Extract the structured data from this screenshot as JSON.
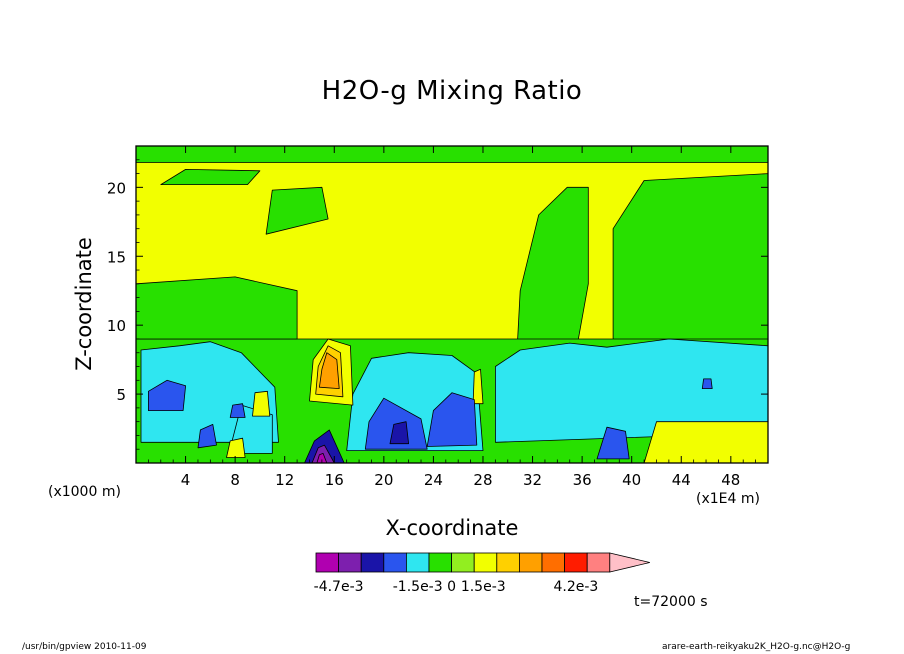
{
  "chart_data": {
    "type": "contour",
    "title": "H2O-g Mixing Ratio",
    "xlabel": "X-coordinate",
    "ylabel": "Z-coordinate",
    "x_unit": "(x1000 m)",
    "x_scale_note": "(x1E4 m)",
    "xlim": [
      0,
      51
    ],
    "ylim": [
      0,
      23
    ],
    "xticks": [
      4,
      8,
      12,
      16,
      20,
      24,
      28,
      32,
      36,
      40,
      44,
      48
    ],
    "yticks": [
      5,
      10,
      15,
      20
    ],
    "time_label": "t=72000 s",
    "colorbar": {
      "colors": [
        "#b000b0",
        "#7d1fae",
        "#1a14a8",
        "#2a55ee",
        "#2fe6f0",
        "#28e000",
        "#92ee20",
        "#f2ff00",
        "#ffd000",
        "#ffa000",
        "#ff6e00",
        "#ff1c00",
        "#ff8080",
        "#ffc0c8"
      ],
      "labels": [
        "-4.7e-3",
        "-1.5e-3",
        "0",
        "1.5e-3",
        "4.2e-3"
      ]
    },
    "regions": [
      {
        "level": "cyan",
        "x": [
          0.4,
          11.5,
          11.2,
          8.5,
          6,
          3.5,
          0.4
        ],
        "z": [
          1.5,
          1.5,
          5.5,
          8,
          8.8,
          8.5,
          8.2
        ]
      },
      {
        "level": "cyan",
        "x": [
          17,
          28,
          27.5,
          25.5,
          22,
          19,
          17.5
        ],
        "z": [
          0.9,
          0.9,
          6.5,
          7.8,
          8,
          7.6,
          5
        ]
      },
      {
        "level": "cyan",
        "x": [
          29,
          51,
          51,
          43,
          38,
          35,
          31,
          29
        ],
        "z": [
          1.5,
          2.2,
          8.5,
          9,
          8.4,
          8.7,
          8.2,
          7
        ]
      },
      {
        "level": "cyan",
        "x": [
          7.5,
          11,
          11,
          8.5
        ],
        "z": [
          0.7,
          0.7,
          3.5,
          4.2
        ]
      },
      {
        "level": "blue",
        "x": [
          1,
          3.8,
          4,
          2.5,
          1
        ],
        "z": [
          3.8,
          3.8,
          5.6,
          6,
          5.2
        ]
      },
      {
        "level": "blue",
        "x": [
          5,
          6.5,
          6.2,
          5.2
        ],
        "z": [
          1.1,
          1.3,
          2.8,
          2.4
        ]
      },
      {
        "level": "blue",
        "x": [
          7.6,
          8.8,
          8.6,
          7.8
        ],
        "z": [
          3.3,
          3.3,
          4.3,
          4.2
        ]
      },
      {
        "level": "blue",
        "x": [
          18.5,
          23.5,
          23,
          20,
          18.8
        ],
        "z": [
          1,
          1,
          3.2,
          4.7,
          3
        ]
      },
      {
        "level": "blue",
        "x": [
          23.5,
          27.5,
          27.3,
          25.5,
          24
        ],
        "z": [
          1.2,
          1.3,
          4.6,
          5.1,
          3.8
        ]
      },
      {
        "level": "blue",
        "x": [
          37.2,
          39.8,
          39.5,
          38
        ],
        "z": [
          0.3,
          0.3,
          2.3,
          2.6
        ]
      },
      {
        "level": "blue",
        "x": [
          45.7,
          46.5,
          46.4,
          45.8
        ],
        "z": [
          5.4,
          5.4,
          6.1,
          6.1
        ]
      },
      {
        "level": "navy",
        "x": [
          13.6,
          16.8,
          15.6,
          14.4
        ],
        "z": [
          0,
          0,
          2.4,
          1.6
        ]
      },
      {
        "level": "navy",
        "x": [
          20.5,
          22,
          21.8,
          20.8
        ],
        "z": [
          1.4,
          1.4,
          3,
          2.8
        ]
      },
      {
        "level": "purple",
        "x": [
          14.2,
          16,
          15.2,
          14.7
        ],
        "z": [
          0,
          0,
          1.3,
          1.1
        ]
      },
      {
        "level": "magenta",
        "x": [
          14.6,
          15.4,
          15.1,
          14.8
        ],
        "z": [
          0,
          0,
          0.7,
          0.6
        ]
      },
      {
        "level": "yellow",
        "x": [
          14,
          17.5,
          17.3,
          15.5,
          14.3
        ],
        "z": [
          4.5,
          4.2,
          8.5,
          9,
          7.5
        ]
      },
      {
        "level": "gold",
        "x": [
          14.5,
          16.7,
          16.5,
          15.5,
          14.7
        ],
        "z": [
          5,
          4.8,
          8,
          8.5,
          7
        ]
      },
      {
        "level": "orange",
        "x": [
          14.8,
          16.4,
          16.2,
          15.4,
          15
        ],
        "z": [
          5.5,
          5.4,
          7.5,
          8,
          6.8
        ]
      },
      {
        "level": "yellow",
        "x": [
          9.4,
          10.8,
          10.6,
          9.6
        ],
        "z": [
          3.4,
          3.4,
          5.2,
          5.1
        ]
      },
      {
        "level": "yellow",
        "x": [
          7.3,
          8.8,
          8.6,
          7.6
        ],
        "z": [
          0.4,
          0.4,
          1.8,
          1.6
        ]
      },
      {
        "level": "yellow",
        "x": [
          41,
          51,
          51,
          42
        ],
        "z": [
          0,
          0,
          3,
          3
        ]
      },
      {
        "level": "yellow",
        "x": [
          27.2,
          28,
          27.8,
          27.3
        ],
        "z": [
          4.3,
          4.3,
          6.8,
          6.6
        ]
      },
      {
        "level": "green",
        "x": [
          0,
          51,
          51,
          0
        ],
        "z": [
          21.8,
          21.8,
          23,
          23
        ]
      },
      {
        "level": "green",
        "x": [
          2,
          9,
          10,
          4
        ],
        "z": [
          20.2,
          20.2,
          21.2,
          21.3
        ]
      },
      {
        "level": "green",
        "x": [
          10.5,
          15.5,
          15,
          11
        ],
        "z": [
          16.6,
          17.7,
          20,
          19.8
        ]
      },
      {
        "level": "green",
        "x": [
          30.5,
          36.5,
          35.5,
          36.5,
          36.5,
          34.8,
          32.5,
          31
        ],
        "z": [
          4,
          4,
          8,
          13,
          20,
          20,
          18,
          12.5
        ]
      },
      {
        "level": "green",
        "x": [
          38.5,
          51,
          51,
          41,
          38.5
        ],
        "z": [
          4,
          3.5,
          21,
          20.5,
          17
        ]
      },
      {
        "level": "green",
        "x": [
          0,
          51,
          51,
          0
        ],
        "z": [
          0,
          0,
          9,
          9
        ]
      },
      {
        "level": "green",
        "x": [
          0,
          13,
          13,
          8,
          0
        ],
        "z": [
          9,
          9,
          12.5,
          13.5,
          13
        ]
      }
    ]
  },
  "footer": {
    "left": "/usr/bin/gpview  2010-11-09",
    "right": "arare-earth-reikyaku2K_H2O-g.nc@H2O-g"
  }
}
